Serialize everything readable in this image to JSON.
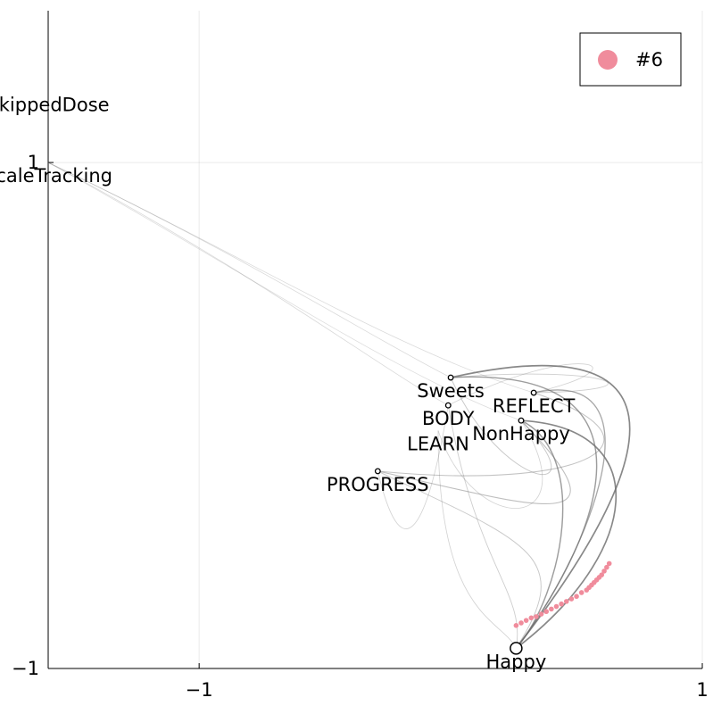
{
  "chart_data": {
    "type": "scatter",
    "title": "",
    "xlabel": "",
    "ylabel": "",
    "xlim": [
      -1.6,
      1
    ],
    "ylim": [
      -1,
      1.6
    ],
    "grid": true,
    "x_ticks": [
      {
        "value": -1,
        "label": "−1"
      },
      {
        "value": 1,
        "label": "1"
      }
    ],
    "y_ticks": [
      {
        "value": -1,
        "label": "−1"
      },
      {
        "value": 1,
        "label": "1"
      }
    ],
    "legend": {
      "placement": "top-right",
      "entries": [
        {
          "label": "#6",
          "color": "#f08c9c"
        }
      ]
    },
    "nodes": [
      {
        "name": "SkippedDose",
        "x": -1.6,
        "y": 1.28,
        "marker": false
      },
      {
        "name": "ScaleTracking",
        "x": -1.6,
        "y": 1.0,
        "marker": false
      },
      {
        "name": "Sweets",
        "x": 0.0,
        "y": 0.15,
        "marker": true
      },
      {
        "name": "REFLECT",
        "x": 0.33,
        "y": 0.09,
        "marker": true
      },
      {
        "name": "BODY",
        "x": -0.01,
        "y": 0.04,
        "marker": true
      },
      {
        "name": "NonHappy",
        "x": 0.28,
        "y": -0.02,
        "marker": true
      },
      {
        "name": "LEARN",
        "x": -0.05,
        "y": -0.06,
        "marker": false
      },
      {
        "name": "PROGRESS",
        "x": -0.29,
        "y": -0.22,
        "marker": true
      },
      {
        "name": "Happy",
        "x": 0.26,
        "y": -0.92,
        "marker": true,
        "large": true
      }
    ],
    "edges": [
      {
        "from": "ScaleTracking",
        "to": "Sweets",
        "weight": 0.15,
        "c1": [
          -0.8,
          0.62
        ],
        "c2": [
          -0.3,
          0.3
        ]
      },
      {
        "from": "ScaleTracking",
        "to": "BODY",
        "weight": 0.15,
        "c1": [
          -0.8,
          0.58
        ],
        "c2": [
          -0.3,
          0.2
        ]
      },
      {
        "from": "ScaleTracking",
        "to": "REFLECT",
        "weight": 0.15,
        "c1": [
          -0.8,
          0.62
        ],
        "c2": [
          -0.2,
          0.25
        ]
      },
      {
        "from": "ScaleTracking",
        "to": "NonHappy",
        "weight": 0.12,
        "c1": [
          -0.8,
          0.56
        ],
        "c2": [
          -0.2,
          0.15
        ]
      },
      {
        "from": "Sweets",
        "to": "Happy",
        "weight": 0.9,
        "c1": [
          0.9,
          0.35
        ],
        "c2": [
          0.9,
          -0.1
        ]
      },
      {
        "from": "Happy",
        "to": "Sweets",
        "weight": 0.7,
        "c1": [
          0.58,
          -0.5
        ],
        "c2": [
          0.88,
          0.2
        ]
      },
      {
        "from": "REFLECT",
        "to": "Happy",
        "weight": 0.6,
        "c1": [
          0.85,
          0.2
        ],
        "c2": [
          0.55,
          -0.55
        ]
      },
      {
        "from": "Happy",
        "to": "NonHappy",
        "weight": 0.9,
        "c1": [
          0.75,
          -0.55
        ],
        "c2": [
          0.82,
          -0.05
        ]
      },
      {
        "from": "NonHappy",
        "to": "Happy",
        "weight": 0.7,
        "c1": [
          0.55,
          -0.15
        ],
        "c2": [
          0.45,
          -0.7
        ]
      },
      {
        "from": "PROGRESS",
        "to": "NonHappy",
        "weight": 0.4,
        "c1": [
          0.3,
          -0.35
        ],
        "c2": [
          0.75,
          -0.5
        ]
      },
      {
        "from": "PROGRESS",
        "to": "REFLECT",
        "weight": 0.35,
        "c1": [
          0.55,
          -0.3
        ],
        "c2": [
          0.9,
          -0.1
        ]
      },
      {
        "from": "PROGRESS",
        "to": "Happy",
        "weight": 0.3,
        "c1": [
          0.3,
          -0.5
        ],
        "c2": [
          0.5,
          -0.55
        ]
      },
      {
        "from": "Sweets",
        "to": "NonHappy",
        "weight": 0.3,
        "c1": [
          0.2,
          -0.3
        ],
        "c2": [
          0.6,
          -0.35
        ]
      },
      {
        "from": "BODY",
        "to": "Happy",
        "weight": 0.25,
        "c1": [
          0.1,
          -0.6
        ],
        "c2": [
          0.3,
          -0.7
        ]
      },
      {
        "from": "LEARN",
        "to": "Happy",
        "weight": 0.2,
        "c1": [
          -0.05,
          -0.8
        ],
        "c2": [
          0.2,
          -0.8
        ]
      },
      {
        "from": "LEARN",
        "to": "NonHappy",
        "weight": 0.2,
        "c1": [
          0.1,
          -0.5
        ],
        "c2": [
          0.55,
          -0.45
        ]
      },
      {
        "from": "BODY",
        "to": "REFLECT",
        "weight": 0.2,
        "c1": [
          0.5,
          0.3
        ],
        "c2": [
          0.8,
          0.2
        ]
      },
      {
        "from": "Sweets",
        "to": "REFLECT",
        "weight": 0.25,
        "c1": [
          0.6,
          0.2
        ],
        "c2": [
          0.88,
          0.1
        ]
      },
      {
        "from": "PROGRESS",
        "to": "BODY",
        "weight": 0.2,
        "c1": [
          -0.2,
          -0.6
        ],
        "c2": [
          -0.1,
          -0.5
        ]
      }
    ],
    "series": [
      {
        "name": "#6",
        "color": "#f08c9c",
        "x": [
          0.26,
          0.28,
          0.3,
          0.32,
          0.34,
          0.36,
          0.38,
          0.4,
          0.42,
          0.44,
          0.46,
          0.48,
          0.5,
          0.52,
          0.54,
          0.55,
          0.56,
          0.57,
          0.58,
          0.59,
          0.6,
          0.61,
          0.62,
          0.63
        ],
        "y": [
          -0.83,
          -0.82,
          -0.81,
          -0.8,
          -0.795,
          -0.785,
          -0.775,
          -0.765,
          -0.755,
          -0.745,
          -0.735,
          -0.725,
          -0.715,
          -0.7,
          -0.69,
          -0.68,
          -0.67,
          -0.66,
          -0.65,
          -0.64,
          -0.63,
          -0.615,
          -0.6,
          -0.585
        ]
      }
    ]
  }
}
